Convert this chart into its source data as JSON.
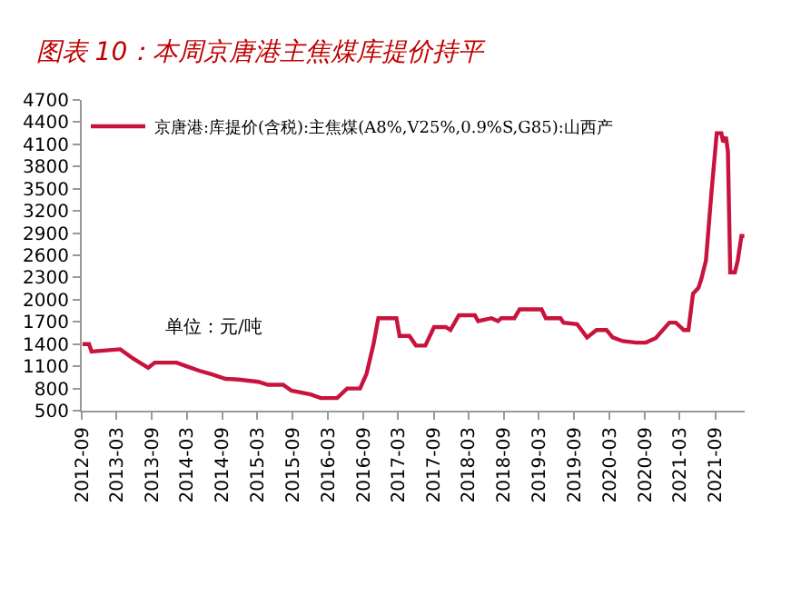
{
  "chart_data": {
    "type": "line",
    "title": "图表 10：本周京唐港主焦煤库提价持平",
    "annotations": [
      "单位：元/吨"
    ],
    "series": [
      {
        "name": "京唐港:库提价(含税):主焦煤(A8%,V25%,0.9%S,G85):山西产",
        "color": "#c8143c",
        "x": [
          "2012-09-05",
          "2012-10-09",
          "2012-10-22",
          "2013-03-20",
          "2013-05-28",
          "2013-08-12",
          "2013-09-15",
          "2014-01-06",
          "2014-02-27",
          "2014-05-03",
          "2014-07-10",
          "2014-09-18",
          "2014-11-24",
          "2015-03-06",
          "2015-04-25",
          "2015-07-13",
          "2015-08-25",
          "2015-12-03",
          "2016-01-24",
          "2016-04-18",
          "2016-06-09",
          "2016-08-15",
          "2016-09-18",
          "2016-10-24",
          "2016-11-18",
          "2017-02-20",
          "2017-03-08",
          "2017-04-28",
          "2017-06-01",
          "2017-07-20",
          "2017-09-03",
          "2017-11-03",
          "2017-11-27",
          "2018-01-10",
          "2018-04-03",
          "2018-04-20",
          "2018-06-28",
          "2018-08-01",
          "2018-08-18",
          "2018-10-25",
          "2018-11-21",
          "2019-03-15",
          "2019-04-06",
          "2019-06-21",
          "2019-07-07",
          "2019-09-15",
          "2019-11-06",
          "2019-12-25",
          "2020-02-15",
          "2020-03-18",
          "2020-05-09",
          "2020-07-18",
          "2020-09-06",
          "2020-10-27",
          "2021-01-06",
          "2021-02-09",
          "2021-03-22",
          "2021-04-15",
          "2021-05-09",
          "2021-06-06",
          "2021-06-21",
          "2021-07-15",
          "2021-08-12",
          "2021-09-09",
          "2021-10-03",
          "2021-10-12",
          "2021-10-27",
          "2021-11-06",
          "2021-11-18",
          "2021-12-12",
          "2021-12-27",
          "2022-01-15",
          "2022-01-30"
        ],
        "values": [
          1400,
          1400,
          1300,
          1330,
          1200,
          1080,
          1150,
          1150,
          1100,
          1040,
          990,
          930,
          920,
          890,
          850,
          850,
          770,
          720,
          670,
          670,
          800,
          800,
          1000,
          1400,
          1750,
          1750,
          1510,
          1510,
          1380,
          1380,
          1630,
          1630,
          1590,
          1790,
          1790,
          1710,
          1750,
          1710,
          1750,
          1750,
          1870,
          1870,
          1750,
          1750,
          1690,
          1670,
          1490,
          1590,
          1590,
          1490,
          1440,
          1420,
          1420,
          1480,
          1690,
          1690,
          1590,
          1590,
          2080,
          2160,
          2280,
          2530,
          3430,
          4250,
          4250,
          4130,
          4200,
          4000,
          2370,
          2370,
          2530,
          2860,
          2860
        ]
      }
    ],
    "xlim": [
      "2012-09-01",
      "2022-02-01"
    ],
    "xticks": [
      "2012-09",
      "2013-03",
      "2013-09",
      "2014-03",
      "2014-09",
      "2015-03",
      "2015-09",
      "2016-03",
      "2016-09",
      "2017-03",
      "2017-09",
      "2018-03",
      "2018-09",
      "2019-03",
      "2019-09",
      "2020-03",
      "2020-09",
      "2021-03",
      "2021-09"
    ],
    "ylim": [
      500,
      4700
    ],
    "yticks": [
      500,
      800,
      1100,
      1400,
      1700,
      2000,
      2300,
      2600,
      2900,
      3200,
      3500,
      3800,
      4100,
      4400,
      4700
    ],
    "legend": "top left",
    "marker": "none",
    "line_style": "solid"
  }
}
